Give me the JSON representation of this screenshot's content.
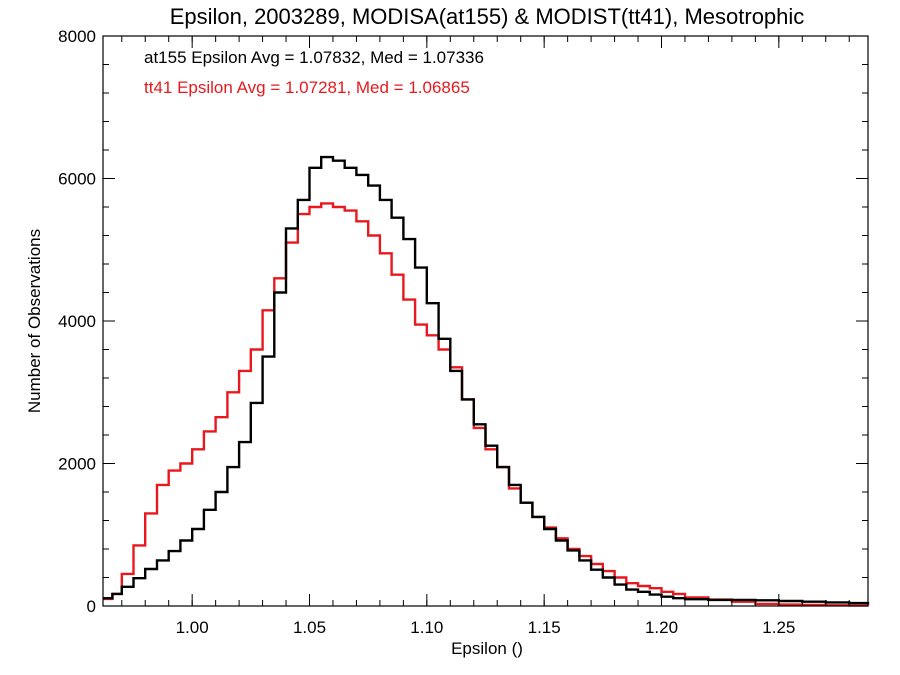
{
  "chart_data": {
    "type": "line",
    "step": true,
    "title": "Epsilon, 2003289, MODISA(at155) & MODIST(tt41), Mesotrophic",
    "xlabel": "Epsilon ()",
    "ylabel": "Number of Observations",
    "xlim": [
      0.962,
      1.288
    ],
    "ylim": [
      0,
      8000
    ],
    "xticks": [
      1.0,
      1.05,
      1.1,
      1.15,
      1.2,
      1.25
    ],
    "xtick_labels": [
      "1.00",
      "1.05",
      "1.10",
      "1.15",
      "1.20",
      "1.25"
    ],
    "yticks": [
      0,
      2000,
      4000,
      6000,
      8000
    ],
    "ytick_labels": [
      "0",
      "2000",
      "4000",
      "6000",
      "8000"
    ],
    "annotations": [
      {
        "text": "at155 Epsilon Avg = 1.07832, Med = 1.07336",
        "color": "#000000"
      },
      {
        "text": "tt41 Epsilon Avg = 1.07281, Med = 1.06865",
        "color": "#e8191e"
      }
    ],
    "series": [
      {
        "color": "#000000",
        "x": [
          0.962,
          0.966,
          0.97,
          0.975,
          0.98,
          0.985,
          0.99,
          0.995,
          1.0,
          1.005,
          1.01,
          1.015,
          1.02,
          1.025,
          1.03,
          1.035,
          1.04,
          1.045,
          1.05,
          1.055,
          1.06,
          1.065,
          1.07,
          1.075,
          1.08,
          1.085,
          1.09,
          1.095,
          1.1,
          1.105,
          1.11,
          1.115,
          1.12,
          1.125,
          1.13,
          1.135,
          1.14,
          1.145,
          1.15,
          1.155,
          1.16,
          1.165,
          1.17,
          1.175,
          1.18,
          1.185,
          1.19,
          1.195,
          1.2,
          1.205,
          1.21,
          1.22,
          1.23,
          1.24,
          1.25,
          1.26,
          1.27,
          1.28,
          1.288
        ],
        "y": [
          110,
          170,
          270,
          390,
          520,
          640,
          770,
          920,
          1080,
          1350,
          1600,
          1950,
          2300,
          2850,
          3500,
          4400,
          5300,
          5700,
          6150,
          6300,
          6250,
          6150,
          6050,
          5900,
          5700,
          5450,
          5150,
          4750,
          4250,
          3750,
          3300,
          2900,
          2550,
          2250,
          1950,
          1700,
          1450,
          1250,
          1080,
          920,
          780,
          640,
          510,
          400,
          300,
          230,
          200,
          160,
          130,
          110,
          95,
          85,
          85,
          80,
          70,
          60,
          50,
          40,
          30
        ]
      },
      {
        "color": "#e8191e",
        "x": [
          0.962,
          0.966,
          0.97,
          0.975,
          0.98,
          0.985,
          0.99,
          0.995,
          1.0,
          1.005,
          1.01,
          1.015,
          1.02,
          1.025,
          1.03,
          1.035,
          1.04,
          1.045,
          1.05,
          1.055,
          1.06,
          1.065,
          1.07,
          1.075,
          1.08,
          1.085,
          1.09,
          1.095,
          1.1,
          1.105,
          1.11,
          1.115,
          1.12,
          1.125,
          1.13,
          1.135,
          1.14,
          1.145,
          1.15,
          1.155,
          1.16,
          1.165,
          1.17,
          1.175,
          1.18,
          1.185,
          1.19,
          1.195,
          1.2,
          1.205,
          1.21,
          1.22,
          1.23,
          1.24,
          1.25,
          1.26,
          1.27,
          1.28,
          1.288
        ],
        "y": [
          100,
          170,
          450,
          850,
          1300,
          1700,
          1900,
          2000,
          2200,
          2450,
          2650,
          3000,
          3300,
          3600,
          4150,
          4600,
          5100,
          5500,
          5600,
          5650,
          5600,
          5550,
          5400,
          5200,
          4950,
          4650,
          4300,
          3950,
          3800,
          3600,
          3350,
          2900,
          2500,
          2200,
          1950,
          1650,
          1450,
          1250,
          1100,
          950,
          800,
          700,
          590,
          490,
          400,
          320,
          280,
          250,
          200,
          170,
          120,
          90,
          60,
          30,
          20,
          15,
          10,
          8,
          5
        ]
      }
    ]
  }
}
